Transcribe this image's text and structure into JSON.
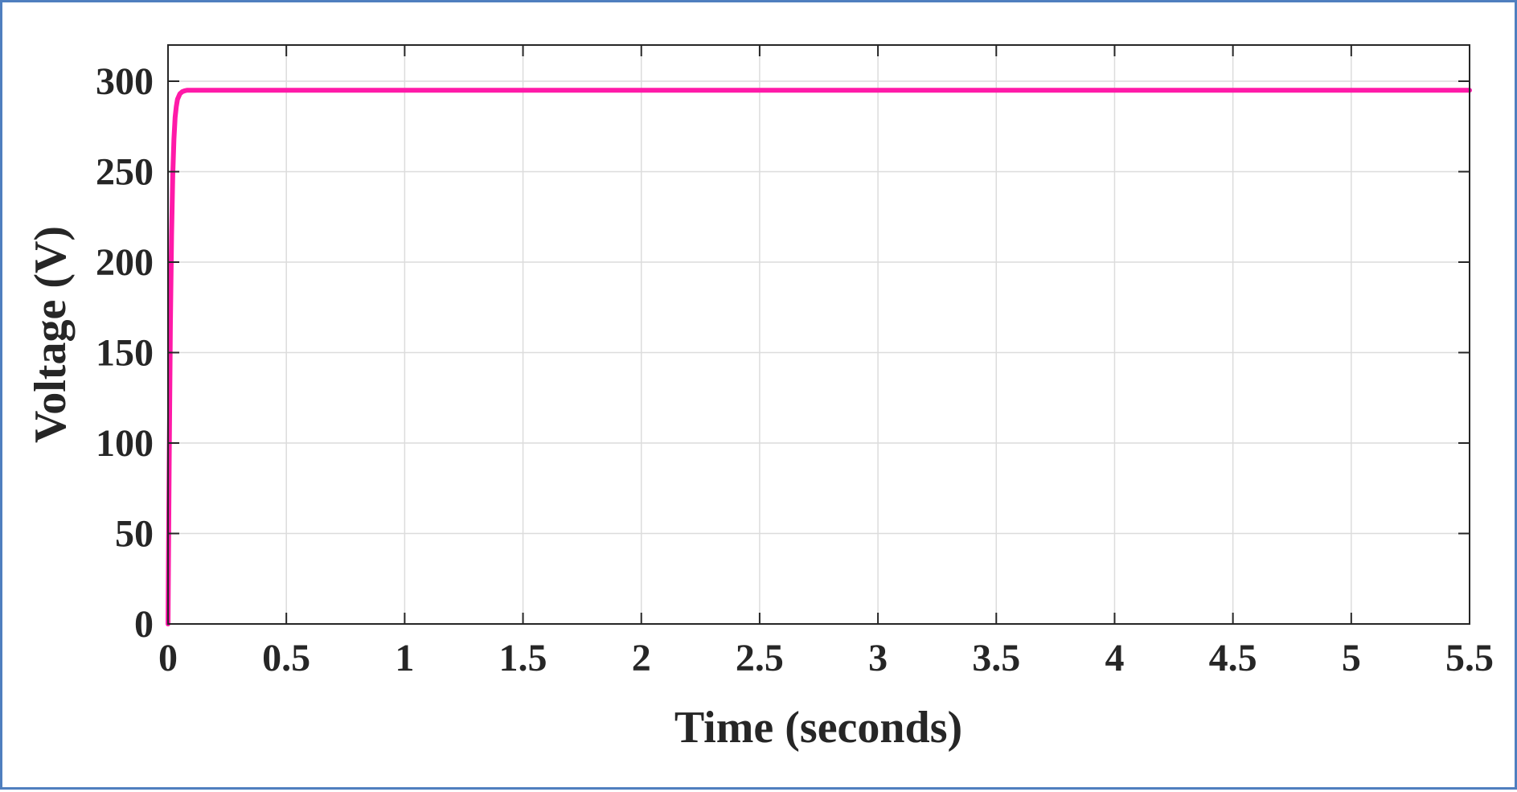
{
  "chart_data": {
    "type": "line",
    "title": "",
    "xlabel": "Time (seconds)",
    "ylabel": "Voltage (V)",
    "xlim": [
      0,
      5.5
    ],
    "ylim": [
      0,
      320
    ],
    "xticks": [
      0,
      0.5,
      1,
      1.5,
      2,
      2.5,
      3,
      3.5,
      4,
      4.5,
      5,
      5.5
    ],
    "xtick_labels": [
      "0",
      "0.5",
      "1",
      "1.5",
      "2",
      "2.5",
      "3",
      "3.5",
      "4",
      "4.5",
      "5",
      "5.5"
    ],
    "yticks": [
      0,
      50,
      100,
      150,
      200,
      250,
      300
    ],
    "ytick_labels": [
      "0",
      "50",
      "100",
      "150",
      "200",
      "250",
      "300"
    ],
    "grid": true,
    "legend": "none",
    "line_color": "#ff1aa8",
    "series": [
      {
        "x": [
          0,
          0.005,
          0.01,
          0.015,
          0.02,
          0.025,
          0.03,
          0.035,
          0.04,
          0.05,
          0.06,
          0.07,
          0.08,
          0.1,
          0.12,
          0.15,
          0.2,
          0.5,
          1,
          1.5,
          2,
          2.5,
          3,
          3.5,
          4,
          4.5,
          5,
          5.5
        ],
        "values": [
          0,
          90,
          165,
          215,
          248,
          268,
          280,
          286,
          290,
          293,
          294.2,
          294.7,
          295,
          295,
          295,
          295,
          295,
          295,
          295,
          295,
          295,
          295,
          295,
          295,
          295,
          295,
          295,
          295
        ]
      }
    ]
  }
}
